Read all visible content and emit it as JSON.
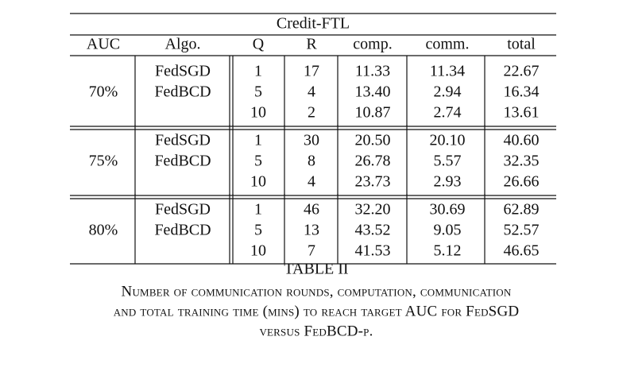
{
  "table": {
    "title": "Credit-FTL",
    "header": [
      "AUC",
      "Algo.",
      "Q",
      "R",
      "comp.",
      "comm.",
      "total"
    ],
    "groups": [
      {
        "auc": "70%",
        "algos": [
          "FedSGD",
          "FedBCD"
        ],
        "rows": [
          [
            "1",
            "17",
            "11.33",
            "11.34",
            "22.67"
          ],
          [
            "5",
            "4",
            "13.40",
            "2.94",
            "16.34"
          ],
          [
            "10",
            "2",
            "10.87",
            "2.74",
            "13.61"
          ]
        ]
      },
      {
        "auc": "75%",
        "algos": [
          "FedSGD",
          "FedBCD"
        ],
        "rows": [
          [
            "1",
            "30",
            "20.50",
            "20.10",
            "40.60"
          ],
          [
            "5",
            "8",
            "26.78",
            "5.57",
            "32.35"
          ],
          [
            "10",
            "4",
            "23.73",
            "2.93",
            "26.66"
          ]
        ]
      },
      {
        "auc": "80%",
        "algos": [
          "FedSGD",
          "FedBCD"
        ],
        "rows": [
          [
            "1",
            "46",
            "32.20",
            "30.69",
            "62.89"
          ],
          [
            "5",
            "13",
            "43.52",
            "9.05",
            "52.57"
          ],
          [
            "10",
            "7",
            "41.53",
            "5.12",
            "46.65"
          ]
        ]
      }
    ]
  },
  "caption": {
    "label": "TABLE II",
    "lines": [
      "Number of communication rounds, computation, communication",
      "and total training time (mins) to reach target AUC for FedSGD",
      "versus FedBCD-p."
    ]
  }
}
